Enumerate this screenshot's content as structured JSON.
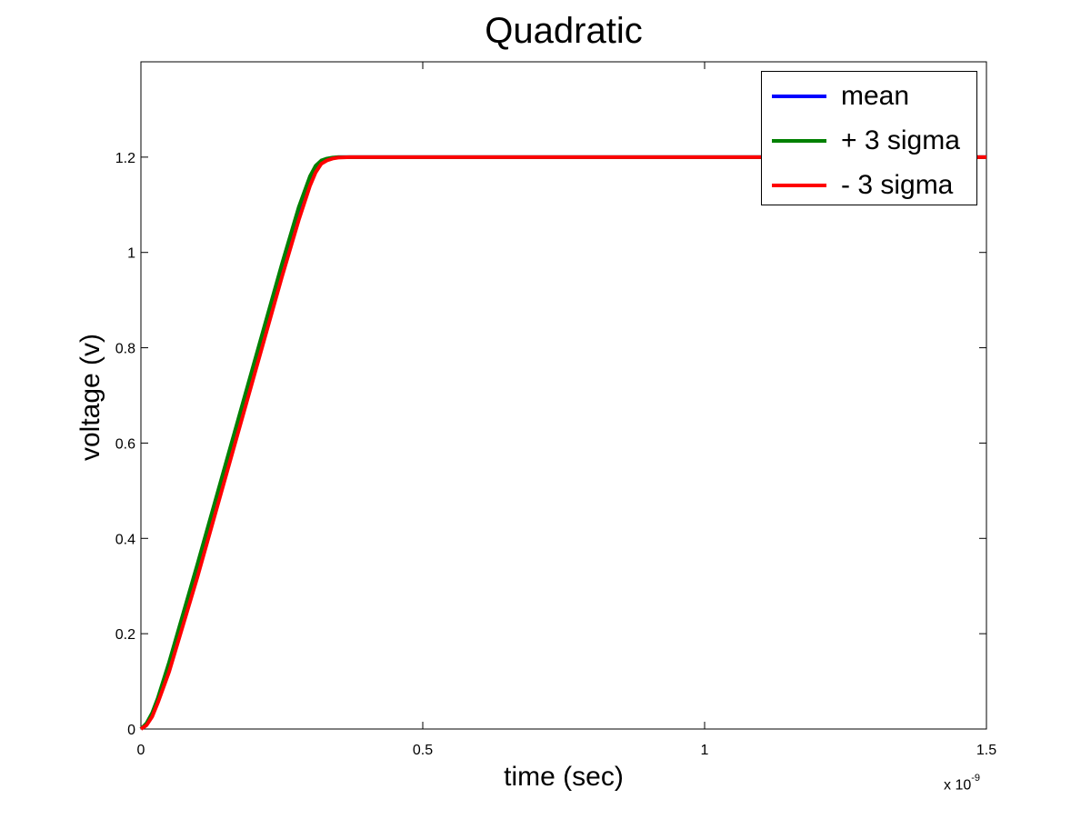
{
  "chart_data": {
    "type": "line",
    "title": "Quadratic",
    "xlabel": "time (sec)",
    "ylabel": "voltage (v)",
    "x_exponent_base": "x 10",
    "x_exponent_power": "-9",
    "xlim": [
      0,
      1.5
    ],
    "ylim": [
      0,
      1.4
    ],
    "x_ticks": [
      0,
      0.5,
      1,
      1.5
    ],
    "x_tick_labels": [
      "0",
      "0.5",
      "1",
      "1.5"
    ],
    "y_ticks": [
      0,
      0.2,
      0.4,
      0.6,
      0.8,
      1.0,
      1.2
    ],
    "y_tick_labels": [
      "0",
      "0.2",
      "0.4",
      "0.6",
      "0.8",
      "1",
      "1.2"
    ],
    "grid": false,
    "legend_position": "top-right",
    "series": [
      {
        "name": "mean",
        "color": "#0000ff",
        "x": [
          0,
          0.01,
          0.02,
          0.03,
          0.05,
          0.1,
          0.15,
          0.2,
          0.25,
          0.28,
          0.3,
          0.31,
          0.32,
          0.33,
          0.34,
          0.35,
          0.37,
          0.4,
          0.5,
          0.8,
          1.0,
          1.5
        ],
        "y": [
          0,
          0.01,
          0.03,
          0.06,
          0.13,
          0.33,
          0.54,
          0.75,
          0.96,
          1.08,
          1.15,
          1.175,
          1.19,
          1.195,
          1.198,
          1.2,
          1.2,
          1.2,
          1.2,
          1.2,
          1.2,
          1.2
        ]
      },
      {
        "name": "+ 3 sigma",
        "color": "#008000",
        "x": [
          0,
          0.01,
          0.02,
          0.03,
          0.05,
          0.1,
          0.15,
          0.2,
          0.25,
          0.28,
          0.3,
          0.31,
          0.32,
          0.33,
          0.34,
          0.35,
          0.37,
          0.4,
          0.5,
          0.8,
          1.0,
          1.5
        ],
        "y": [
          0,
          0.012,
          0.034,
          0.065,
          0.14,
          0.345,
          0.555,
          0.765,
          0.975,
          1.095,
          1.16,
          1.182,
          1.193,
          1.197,
          1.199,
          1.2,
          1.2,
          1.2,
          1.2,
          1.2,
          1.2,
          1.2
        ]
      },
      {
        "name": "- 3 sigma",
        "color": "#ff0000",
        "x": [
          0,
          0.01,
          0.02,
          0.03,
          0.05,
          0.1,
          0.15,
          0.2,
          0.25,
          0.28,
          0.3,
          0.31,
          0.32,
          0.33,
          0.34,
          0.35,
          0.37,
          0.4,
          0.5,
          0.8,
          1.0,
          1.5
        ],
        "y": [
          0,
          0.008,
          0.026,
          0.055,
          0.12,
          0.318,
          0.528,
          0.738,
          0.948,
          1.068,
          1.14,
          1.168,
          1.186,
          1.193,
          1.197,
          1.199,
          1.2,
          1.2,
          1.2,
          1.2,
          1.2,
          1.2
        ]
      }
    ]
  }
}
